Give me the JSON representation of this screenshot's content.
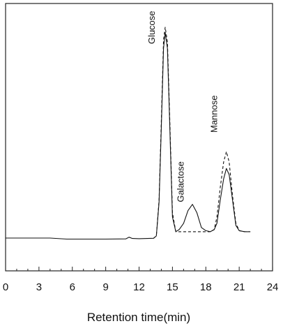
{
  "chart_data": {
    "type": "line",
    "xlabel": "Retention time(min)",
    "ylabel": "",
    "xlim": [
      0,
      24
    ],
    "x_ticks": [
      "0",
      "3",
      "6",
      "9",
      "12",
      "15",
      "18",
      "21",
      "24"
    ],
    "grid": false,
    "y_ticks_shown": false,
    "annotations": [
      {
        "text": "Glucose",
        "x": 14.3,
        "y": 0.92
      },
      {
        "text": "Galactose",
        "x": 16.9,
        "y": 0.17
      },
      {
        "text": "Mannose",
        "x": 19.9,
        "y": 0.5
      }
    ],
    "series": [
      {
        "style": "solid",
        "x": [
          0,
          4.0,
          5.5,
          9.0,
          10.8,
          11.1,
          11.4,
          12.0,
          13.3,
          13.55,
          13.8,
          14.0,
          14.2,
          14.35,
          14.55,
          14.75,
          15.0,
          15.3,
          15.6,
          16.0,
          16.4,
          16.8,
          17.2,
          17.6,
          18.0,
          18.4,
          18.75,
          19.0,
          19.3,
          19.6,
          19.85,
          20.1,
          20.4,
          20.7,
          21.0,
          21.5,
          22.0
        ],
        "y": [
          0.0,
          0.0,
          -0.005,
          -0.005,
          -0.004,
          0.004,
          -0.002,
          -0.003,
          -0.001,
          0.01,
          0.17,
          0.52,
          0.9,
          0.975,
          0.9,
          0.55,
          0.1,
          0.03,
          0.04,
          0.07,
          0.13,
          0.16,
          0.12,
          0.05,
          0.035,
          0.03,
          0.04,
          0.07,
          0.18,
          0.28,
          0.33,
          0.3,
          0.18,
          0.06,
          0.035,
          0.03,
          0.03
        ]
      },
      {
        "style": "dashed",
        "x": [
          13.3,
          13.55,
          13.8,
          14.0,
          14.2,
          14.35,
          14.55,
          14.75,
          15.0,
          15.3,
          18.4,
          18.75,
          19.0,
          19.3,
          19.6,
          19.85,
          20.1,
          20.4,
          20.7,
          21.0,
          21.5,
          22.0
        ],
        "y": [
          -0.001,
          0.01,
          0.18,
          0.55,
          0.94,
          1.0,
          0.93,
          0.58,
          0.12,
          0.03,
          0.03,
          0.04,
          0.1,
          0.24,
          0.36,
          0.41,
          0.36,
          0.2,
          0.07,
          0.035,
          0.03,
          0.03
        ]
      }
    ]
  }
}
